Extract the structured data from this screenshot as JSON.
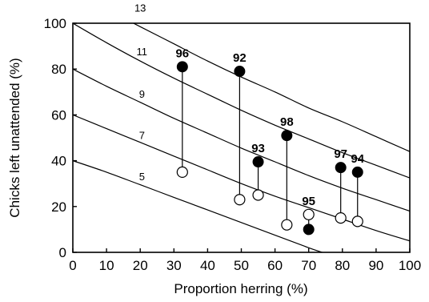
{
  "chart_data": {
    "type": "scatter",
    "xlabel": "Proportion herring (%)",
    "ylabel": "Chicks left unattended (%)",
    "xlim": [
      0,
      100
    ],
    "ylim": [
      0,
      100
    ],
    "xticks": [
      "0",
      "10",
      "20",
      "30",
      "40",
      "50",
      "60",
      "70",
      "80",
      "90",
      "100"
    ],
    "yticks": [
      "0",
      "20",
      "40",
      "60",
      "80",
      "100"
    ],
    "grid": false,
    "curves": [
      {
        "label": "5",
        "points": [
          [
            0,
            40
          ],
          [
            10,
            35
          ],
          [
            20,
            29.5
          ],
          [
            30,
            24
          ],
          [
            40,
            18.5
          ],
          [
            50,
            13
          ],
          [
            60,
            7.5
          ],
          [
            70,
            2
          ],
          [
            74,
            0
          ]
        ]
      },
      {
        "label": "7",
        "points": [
          [
            0,
            60
          ],
          [
            10,
            54
          ],
          [
            20,
            48
          ],
          [
            30,
            42
          ],
          [
            40,
            36
          ],
          [
            50,
            30
          ],
          [
            60,
            24.5
          ],
          [
            70,
            19.5
          ],
          [
            80,
            14.5
          ],
          [
            90,
            9.5
          ],
          [
            100,
            5
          ]
        ]
      },
      {
        "label": "9",
        "points": [
          [
            0,
            80
          ],
          [
            10,
            72.5
          ],
          [
            20,
            65.5
          ],
          [
            30,
            58.5
          ],
          [
            40,
            52
          ],
          [
            50,
            45.5
          ],
          [
            60,
            39.5
          ],
          [
            70,
            33.5
          ],
          [
            80,
            28
          ],
          [
            90,
            23
          ],
          [
            100,
            18
          ]
        ]
      },
      {
        "label": "11",
        "points": [
          [
            0,
            100
          ],
          [
            10,
            91.5
          ],
          [
            20,
            83.5
          ],
          [
            30,
            76
          ],
          [
            40,
            69
          ],
          [
            50,
            62
          ],
          [
            60,
            55.5
          ],
          [
            70,
            49.5
          ],
          [
            80,
            43.5
          ],
          [
            90,
            38
          ],
          [
            100,
            32.5
          ]
        ]
      },
      {
        "label": "13",
        "points": [
          [
            18,
            100
          ],
          [
            20,
            98.5
          ],
          [
            30,
            91
          ],
          [
            40,
            83.5
          ],
          [
            50,
            76.5
          ],
          [
            60,
            70
          ],
          [
            70,
            63
          ],
          [
            80,
            57
          ],
          [
            90,
            50.5
          ],
          [
            100,
            44
          ]
        ]
      }
    ],
    "years": [
      {
        "label": "96",
        "x": 32.5,
        "filled": 81,
        "open": 35
      },
      {
        "label": "92",
        "x": 49.5,
        "filled": 79,
        "open": 23
      },
      {
        "label": "93",
        "x": 55,
        "filled": 39.5,
        "open": 25
      },
      {
        "label": "98",
        "x": 63.5,
        "filled": 51,
        "open": 12
      },
      {
        "label": "95",
        "x": 70,
        "filled": 10,
        "open": 16.5
      },
      {
        "label": "97",
        "x": 79.5,
        "filled": 37,
        "open": 15
      },
      {
        "label": "94",
        "x": 84.5,
        "filled": 35,
        "open": 13.5
      }
    ]
  }
}
